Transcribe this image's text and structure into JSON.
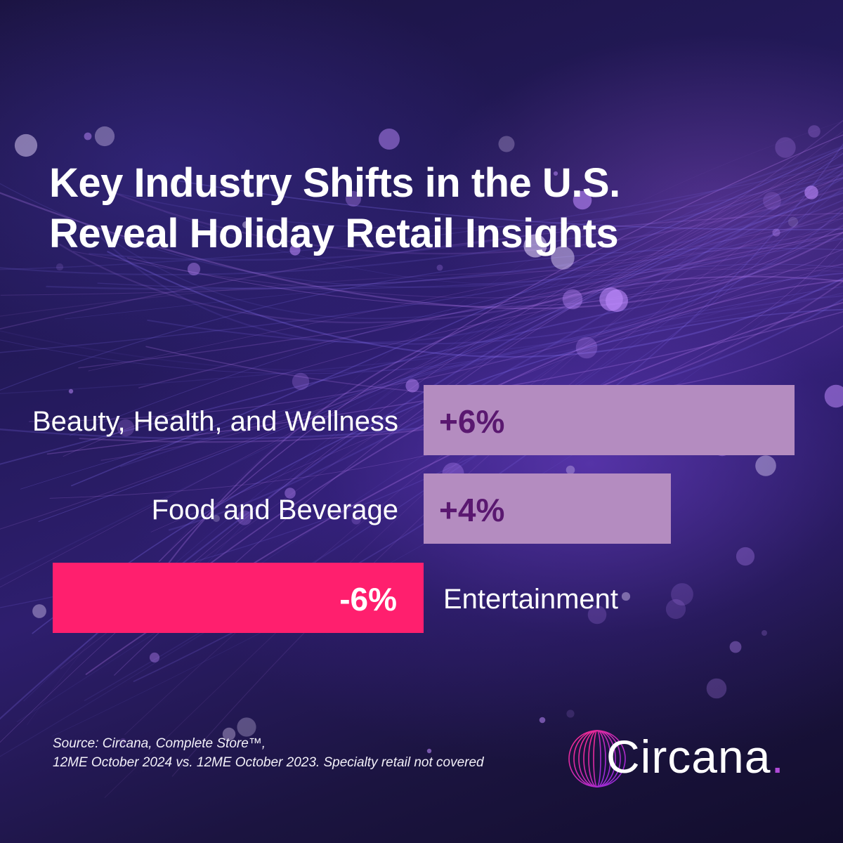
{
  "title": {
    "line1": "Key Industry Shifts in the U.S.",
    "line2": "Reveal Holiday Retail Insights"
  },
  "chart_data": {
    "type": "bar",
    "orientation": "horizontal-diverging",
    "categories": [
      "Beauty, Health, and Wellness",
      "Food and Beverage",
      "Entertainment"
    ],
    "values": [
      6,
      4,
      -6
    ],
    "value_labels": [
      "+6%",
      "+4%",
      "-6%"
    ],
    "unit": "%",
    "xlim": [
      -6,
      6
    ],
    "grid": false,
    "legend": "none",
    "colors": {
      "positive_bar": "#b48cc0",
      "positive_label": "#5a1870",
      "negative_bar": "#ff1f6e",
      "negative_label": "#ffffff"
    }
  },
  "source": {
    "line1": "Source: Circana, Complete Store™,",
    "line2": "12ME October 2024 vs. 12ME October 2023. Specialty retail not covered"
  },
  "logo": {
    "name": "Circana",
    "dot": ".",
    "mark_icon": "circana-rings-icon"
  }
}
